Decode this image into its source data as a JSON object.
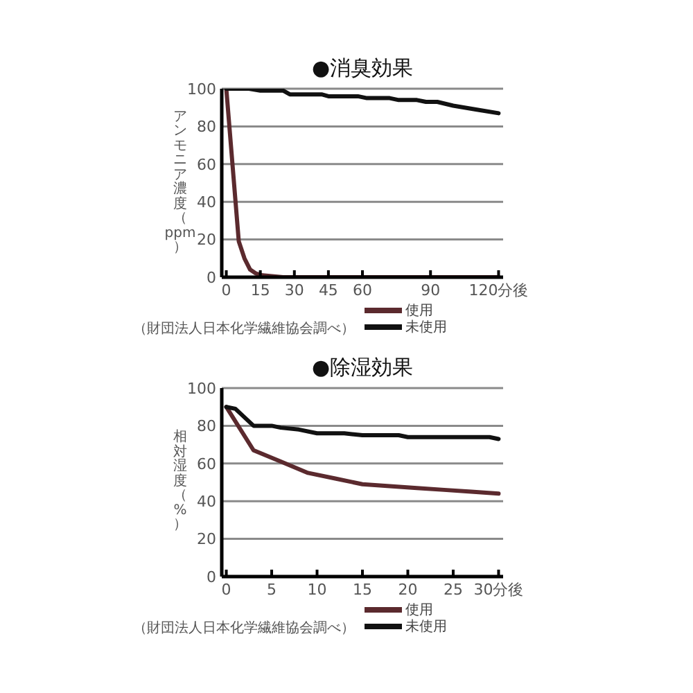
{
  "chart_data": [
    {
      "type": "line",
      "title": "●消臭効果",
      "ylabel": "アンモニア濃度（ppm）",
      "xlim": [
        -2,
        122
      ],
      "xticks": [
        0,
        15,
        30,
        45,
        60,
        90,
        {
          "value": 120,
          "label": "120分後"
        }
      ],
      "ylim": [
        0,
        100
      ],
      "yticks": [
        0,
        20,
        40,
        60,
        80,
        100
      ],
      "grid": "y",
      "legend": "bottom right",
      "annotations": [
        "（財団法人日本化学繊維協会調べ）"
      ],
      "series": [
        {
          "name": "使用",
          "color": "#5b2a2e",
          "x": [
            0,
            5.5,
            8,
            10.5,
            13,
            16,
            25,
            120
          ],
          "values": [
            100,
            19,
            10,
            4,
            2,
            1,
            0,
            0
          ]
        },
        {
          "name": "未使用",
          "color": "#111111",
          "x": [
            0,
            10,
            15,
            25,
            28,
            42,
            45,
            58,
            62,
            72,
            76,
            84,
            88,
            93,
            100,
            110,
            120
          ],
          "values": [
            100,
            100,
            99,
            99,
            97,
            97,
            96,
            96,
            95,
            95,
            94,
            94,
            93,
            93,
            91,
            89,
            87
          ]
        }
      ]
    },
    {
      "type": "line",
      "title": "●除湿効果",
      "ylabel": "相対湿度（%）",
      "xlim": [
        -0.5,
        30.5
      ],
      "xticks": [
        0,
        5,
        10,
        15,
        20,
        25,
        {
          "value": 30,
          "label": "30分後"
        }
      ],
      "ylim": [
        0,
        100
      ],
      "yticks": [
        0,
        20,
        40,
        60,
        80,
        100
      ],
      "grid": "y",
      "legend": "bottom right",
      "annotations": [
        "（財団法人日本化学繊維協会調べ）"
      ],
      "series": [
        {
          "name": "使用",
          "color": "#5b2a2e",
          "x": [
            0,
            3,
            6,
            9,
            12,
            15,
            18,
            21,
            24,
            27,
            30
          ],
          "values": [
            90,
            67,
            61,
            55,
            52,
            49,
            48,
            47,
            46,
            45,
            44
          ]
        },
        {
          "name": "未使用",
          "color": "#111111",
          "x": [
            0,
            1,
            3,
            5,
            6,
            8,
            10,
            13,
            15,
            17,
            19,
            20,
            28,
            29,
            30
          ],
          "values": [
            90,
            89,
            80,
            80,
            79,
            78,
            76,
            76,
            75,
            75,
            75,
            74,
            74,
            74,
            73
          ]
        }
      ]
    }
  ]
}
